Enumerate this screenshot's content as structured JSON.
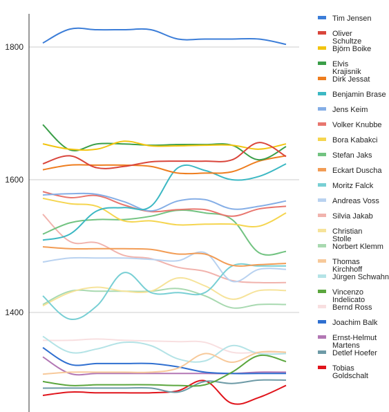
{
  "chart_data": {
    "type": "line",
    "title": "",
    "xlabel": "",
    "ylabel": "",
    "ylim": [
      1260,
      1650
    ],
    "yticks": [
      1400,
      1600,
      1800
    ],
    "x": [
      1,
      2,
      3,
      4,
      5,
      6,
      7,
      8,
      9,
      10
    ],
    "grid": true,
    "legend_position": "right",
    "series": [
      {
        "name": "Tim Jensen",
        "color": "#3b7dd8",
        "values": [
          1806,
          1827,
          1826,
          1826,
          1826,
          1812,
          1812,
          1812,
          1812,
          1804
        ]
      },
      {
        "name": "Oliver Schultze",
        "color": "#d9453b",
        "values": [
          1624,
          1636,
          1618,
          1620,
          1627,
          1628,
          1628,
          1630,
          1656,
          1635
        ]
      },
      {
        "name": "Björn Boike",
        "color": "#f2c40f",
        "values": [
          1654,
          1646,
          1646,
          1658,
          1651,
          1651,
          1652,
          1652,
          1646,
          1654
        ]
      },
      {
        "name": "Elvis Krajisnik",
        "color": "#3a9e48",
        "values": [
          1683,
          1645,
          1654,
          1654,
          1652,
          1653,
          1653,
          1652,
          1630,
          1650
        ]
      },
      {
        "name": "Dirk Jessat",
        "color": "#ee7d1e",
        "values": [
          1615,
          1622,
          1622,
          1622,
          1620,
          1610,
          1610,
          1612,
          1628,
          1636
        ]
      },
      {
        "name": "Benjamin Brase",
        "color": "#3cb8c3",
        "values": [
          1509,
          1518,
          1553,
          1558,
          1560,
          1618,
          1614,
          1600,
          1605,
          1624
        ]
      },
      {
        "name": "Jens Keim",
        "color": "#85aee6",
        "values": [
          1577,
          1579,
          1578,
          1567,
          1553,
          1568,
          1570,
          1556,
          1560,
          1568
        ]
      },
      {
        "name": "Volker Knubbe",
        "color": "#e8766e",
        "values": [
          1582,
          1573,
          1576,
          1562,
          1552,
          1555,
          1555,
          1545,
          1556,
          1560
        ]
      },
      {
        "name": "Bora Kabakci",
        "color": "#f5d54f",
        "values": [
          1572,
          1564,
          1560,
          1538,
          1538,
          1532,
          1533,
          1533,
          1530,
          1550
        ]
      },
      {
        "name": "Stefan Jaks",
        "color": "#72c381",
        "values": [
          1518,
          1535,
          1540,
          1540,
          1545,
          1554,
          1550,
          1540,
          1490,
          1492
        ]
      },
      {
        "name": "Eckart Duscha",
        "color": "#f29c55",
        "values": [
          1499,
          1496,
          1496,
          1496,
          1495,
          1488,
          1488,
          1471,
          1472,
          1474
        ]
      },
      {
        "name": "Moritz Falck",
        "color": "#78cfd4",
        "values": [
          1425,
          1390,
          1410,
          1460,
          1430,
          1430,
          1430,
          1470,
          1470,
          1470
        ]
      },
      {
        "name": "Andreas Voss",
        "color": "#b9d2f0",
        "values": [
          1476,
          1482,
          1482,
          1482,
          1480,
          1478,
          1490,
          1447,
          1465,
          1465
        ]
      },
      {
        "name": "Silvia Jakab",
        "color": "#f1b3ad",
        "values": [
          1548,
          1507,
          1505,
          1486,
          1481,
          1468,
          1462,
          1448,
          1445,
          1445
        ]
      },
      {
        "name": "Christian Stolle",
        "color": "#f6e39a",
        "values": [
          1410,
          1430,
          1438,
          1432,
          1432,
          1452,
          1440,
          1420,
          1433,
          1433
        ]
      },
      {
        "name": "Norbert Klemm",
        "color": "#a8d9b0",
        "values": [
          1412,
          1432,
          1432,
          1432,
          1432,
          1436,
          1425,
          1407,
          1412,
          1412
        ]
      },
      {
        "name": "Thomas Kirchhoff",
        "color": "#f7c99a",
        "values": [
          1307,
          1310,
          1310,
          1310,
          1310,
          1316,
          1338,
          1325,
          1340,
          1340
        ]
      },
      {
        "name": "Jürgen Schwahn",
        "color": "#b4e3e6",
        "values": [
          1364,
          1340,
          1345,
          1355,
          1350,
          1330,
          1327,
          1350,
          1338,
          1338
        ]
      },
      {
        "name": "Vincenzo Indelicato",
        "color": "#5ba63d",
        "values": [
          1296,
          1290,
          1291,
          1291,
          1291,
          1290,
          1291,
          1310,
          1335,
          1326
        ]
      },
      {
        "name": "Bernd Ross",
        "color": "#f8dfe0",
        "values": [
          1358,
          1358,
          1360,
          1358,
          1357,
          1356,
          1355,
          1340,
          1340,
          1340
        ]
      },
      {
        "name": "Joachim Balk",
        "color": "#2f6fd0",
        "values": [
          1347,
          1322,
          1323,
          1323,
          1323,
          1318,
          1310,
          1308,
          1308,
          1308
        ]
      },
      {
        "name": "Ernst-Helmut Martens",
        "color": "#b277b4",
        "values": [
          1333,
          1308,
          1308,
          1308,
          1308,
          1308,
          1308,
          1308,
          1310,
          1310
        ]
      },
      {
        "name": "Detlef Hoefer",
        "color": "#6d9aa6",
        "values": [
          1286,
          1286,
          1286,
          1286,
          1286,
          1280,
          1296,
          1293,
          1298,
          1298
        ]
      },
      {
        "name": "Tobias Goldschalt",
        "color": "#e0141b",
        "values": [
          1275,
          1280,
          1279,
          1279,
          1279,
          1282,
          1297,
          1263,
          1272,
          1290
        ]
      }
    ]
  }
}
